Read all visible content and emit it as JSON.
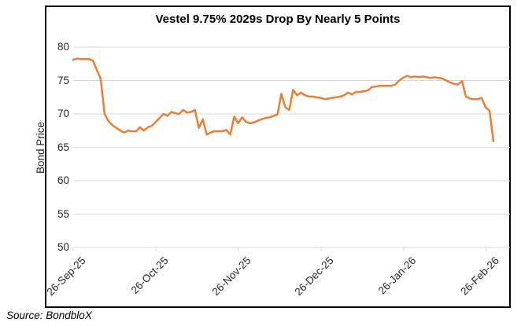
{
  "source": "Source: BondbloX",
  "colors": {
    "line": "#ED7D31",
    "grid": "#D9D9D9",
    "border": "#000000",
    "text": "#262626"
  },
  "chart_data": {
    "type": "line",
    "title": "Vestel 9.75% 2029s Drop By Nearly 5 Points",
    "xlabel": "",
    "ylabel": "Bond Price",
    "ylim": [
      50,
      80
    ],
    "y_ticks": [
      80,
      75,
      70,
      65,
      60,
      55,
      50
    ],
    "x_tick_labels": [
      "26-Sep-25",
      "26-Oct-25",
      "26-Nov-25",
      "26-Dec-25",
      "26-Jan-26",
      "26-Feb-26"
    ],
    "grid": "horizontal",
    "legend": "none",
    "series": [
      {
        "name": "Vestel 9.75% 2029s",
        "values": [
          78.1,
          78.3,
          78.2,
          78.2,
          78.2,
          78.0,
          76.6,
          75.3,
          70.0,
          68.9,
          68.3,
          67.9,
          67.5,
          67.2,
          67.5,
          67.4,
          67.4,
          68.0,
          67.5,
          68.0,
          68.2,
          68.8,
          69.4,
          70.0,
          69.7,
          70.3,
          70.1,
          70.0,
          70.6,
          70.2,
          70.3,
          70.6,
          67.9,
          69.2,
          66.9,
          67.2,
          67.4,
          67.4,
          67.4,
          67.6,
          66.9,
          69.6,
          68.6,
          69.5,
          68.8,
          68.6,
          68.7,
          69.0,
          69.2,
          69.4,
          69.5,
          69.7,
          69.9,
          73.0,
          71.0,
          70.6,
          73.6,
          72.8,
          73.2,
          72.8,
          72.6,
          72.6,
          72.5,
          72.4,
          72.2,
          72.3,
          72.4,
          72.5,
          72.6,
          72.8,
          73.2,
          72.9,
          73.3,
          73.3,
          73.4,
          73.5,
          74.0,
          74.1,
          74.2,
          74.2,
          74.2,
          74.2,
          74.4,
          75.0,
          75.4,
          75.7,
          75.5,
          75.6,
          75.5,
          75.6,
          75.5,
          75.4,
          75.5,
          75.4,
          75.3,
          75.0,
          74.7,
          74.5,
          74.4,
          74.9,
          72.6,
          72.3,
          72.2,
          72.2,
          72.4,
          71.0,
          70.5,
          65.9
        ]
      }
    ]
  }
}
